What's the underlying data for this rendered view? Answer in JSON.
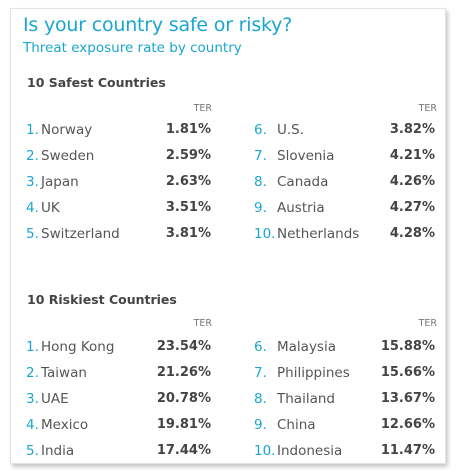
{
  "title": "Is your country safe or risky?",
  "subtitle": "Threat exposure rate by country",
  "safest": {
    "heading": "10 Safest Countries",
    "col_label": "TER",
    "left": [
      {
        "rank": "1.",
        "country": "Norway",
        "ter": "1.81%"
      },
      {
        "rank": "2.",
        "country": "Sweden",
        "ter": "2.59%"
      },
      {
        "rank": "3.",
        "country": "Japan",
        "ter": "2.63%"
      },
      {
        "rank": "4.",
        "country": "UK",
        "ter": "3.51%"
      },
      {
        "rank": "5.",
        "country": "Switzerland",
        "ter": "3.81%"
      }
    ],
    "right": [
      {
        "rank": "6.",
        "country": "U.S.",
        "ter": "3.82%"
      },
      {
        "rank": "7.",
        "country": "Slovenia",
        "ter": "4.21%"
      },
      {
        "rank": "8.",
        "country": "Canada",
        "ter": "4.26%"
      },
      {
        "rank": "9.",
        "country": "Austria",
        "ter": "4.27%"
      },
      {
        "rank": "10.",
        "country": "Netherlands",
        "ter": "4.28%"
      }
    ]
  },
  "riskiest": {
    "heading": "10 Riskiest Countries",
    "col_label": "TER",
    "left": [
      {
        "rank": "1.",
        "country": "Hong Kong",
        "ter": "23.54%"
      },
      {
        "rank": "2.",
        "country": "Taiwan",
        "ter": "21.26%"
      },
      {
        "rank": "3.",
        "country": "UAE",
        "ter": "20.78%"
      },
      {
        "rank": "4.",
        "country": "Mexico",
        "ter": "19.81%"
      },
      {
        "rank": "5.",
        "country": "India",
        "ter": "17.44%"
      }
    ],
    "right": [
      {
        "rank": "6.",
        "country": "Malaysia",
        "ter": "15.88%"
      },
      {
        "rank": "7.",
        "country": "Philippines",
        "ter": "15.66%"
      },
      {
        "rank": "8.",
        "country": "Thailand",
        "ter": "13.67%"
      },
      {
        "rank": "9.",
        "country": "China",
        "ter": "12.66%"
      },
      {
        "rank": "10.",
        "country": "Indonesia",
        "ter": "11.47%"
      }
    ]
  },
  "colors": {
    "accent": "#1aa6d0",
    "text": "#555555",
    "heading": "#444444"
  }
}
